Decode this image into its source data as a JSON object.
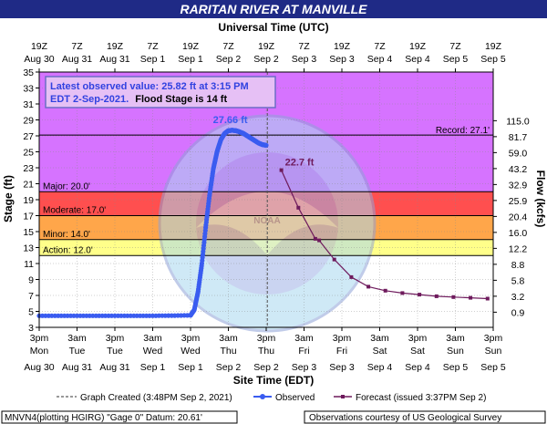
{
  "chart_data": {
    "type": "line",
    "title": "RARITAN RIVER AT MANVILLE",
    "top_axis_title": "Universal Time (UTC)",
    "xlabel": "Site Time (EDT)",
    "ylabel": "Stage (ft)",
    "y2label": "Flow (kcfs)",
    "ylim": [
      3,
      35
    ],
    "y_ticks": [
      3,
      5,
      7,
      9,
      11,
      13,
      15,
      17,
      19,
      21,
      23,
      25,
      27,
      29,
      31,
      33,
      35
    ],
    "flow_ticks": [
      {
        "stage": 4.9,
        "label": "0.9"
      },
      {
        "stage": 6.9,
        "label": "3.2"
      },
      {
        "stage": 8.9,
        "label": "5.8"
      },
      {
        "stage": 10.9,
        "label": "8.8"
      },
      {
        "stage": 12.9,
        "label": "12.2"
      },
      {
        "stage": 14.9,
        "label": "16.0"
      },
      {
        "stage": 16.9,
        "label": "20.4"
      },
      {
        "stage": 18.9,
        "label": "25.9"
      },
      {
        "stage": 20.9,
        "label": "32.9"
      },
      {
        "stage": 22.9,
        "label": "43.2"
      },
      {
        "stage": 24.9,
        "label": "59.0"
      },
      {
        "stage": 26.9,
        "label": "81.7"
      },
      {
        "stage": 28.9,
        "label": "115.0"
      }
    ],
    "x_ticks": [
      {
        "top1": "19Z",
        "top2": "Aug 30",
        "bot1": "3pm",
        "bot2": "Mon",
        "bot3": "Aug 30"
      },
      {
        "top1": "7Z",
        "top2": "Aug 31",
        "bot1": "3am",
        "bot2": "Tue",
        "bot3": "Aug 31"
      },
      {
        "top1": "19Z",
        "top2": "Aug 31",
        "bot1": "3pm",
        "bot2": "Tue",
        "bot3": "Aug 31"
      },
      {
        "top1": "7Z",
        "top2": "Sep 1",
        "bot1": "3am",
        "bot2": "Wed",
        "bot3": "Sep 1"
      },
      {
        "top1": "19Z",
        "top2": "Sep 1",
        "bot1": "3pm",
        "bot2": "Wed",
        "bot3": "Sep 1"
      },
      {
        "top1": "7Z",
        "top2": "Sep 2",
        "bot1": "3am",
        "bot2": "Thu",
        "bot3": "Sep 2"
      },
      {
        "top1": "19Z",
        "top2": "Sep 2",
        "bot1": "3pm",
        "bot2": "Thu",
        "bot3": "Sep 2"
      },
      {
        "top1": "7Z",
        "top2": "Sep 3",
        "bot1": "3am",
        "bot2": "Fri",
        "bot3": "Sep 3"
      },
      {
        "top1": "19Z",
        "top2": "Sep 3",
        "bot1": "3pm",
        "bot2": "Fri",
        "bot3": "Sep 3"
      },
      {
        "top1": "7Z",
        "top2": "Sep 4",
        "bot1": "3am",
        "bot2": "Sat",
        "bot3": "Sep 4"
      },
      {
        "top1": "19Z",
        "top2": "Sep 4",
        "bot1": "3pm",
        "bot2": "Sat",
        "bot3": "Sep 4"
      },
      {
        "top1": "7Z",
        "top2": "Sep 5",
        "bot1": "3am",
        "bot2": "Sun",
        "bot3": "Sep 5"
      },
      {
        "top1": "19Z",
        "top2": "Sep 5",
        "bot1": "3pm",
        "bot2": "Sun",
        "bot3": "Sep 5"
      }
    ],
    "stage_bands": [
      {
        "name": "Action",
        "label": "Action: 12.0'",
        "from": 12,
        "to": 14,
        "color": "#ffff8a"
      },
      {
        "name": "Minor",
        "label": "Minor: 14.0'",
        "from": 14,
        "to": 17,
        "color": "#ffa64a"
      },
      {
        "name": "Moderate",
        "label": "Moderate: 17.0'",
        "from": 17,
        "to": 20,
        "color": "#ff4f4f"
      },
      {
        "name": "Major",
        "label": "Major: 20.0'",
        "from": 20,
        "to": 35,
        "color": "#d673ff"
      }
    ],
    "record": {
      "label": "Record: 27.1'",
      "value": 27.1
    },
    "graph_created_x": 6.03,
    "observed": {
      "name": "Observed",
      "color": "#3a5cf0",
      "x": [
        0,
        1,
        2,
        3,
        4,
        4.1,
        4.2,
        4.3,
        4.4,
        4.5,
        4.6,
        4.7,
        4.8,
        4.9,
        5.0,
        5.1,
        5.2,
        5.3,
        5.4,
        5.5,
        5.6,
        5.7,
        5.8,
        5.9,
        6.0
      ],
      "y": [
        4.45,
        4.45,
        4.45,
        4.45,
        4.5,
        5.2,
        7.5,
        11.0,
        15.5,
        19.5,
        22.8,
        25.0,
        26.5,
        27.3,
        27.66,
        27.7,
        27.66,
        27.5,
        27.3,
        27.0,
        26.7,
        26.4,
        26.1,
        25.9,
        25.82
      ]
    },
    "forecast": {
      "name": "Forecast",
      "color": "#6e1a5c",
      "x": [
        6.4,
        6.85,
        7.3,
        7.4,
        7.8,
        8.25,
        8.7,
        9.15,
        9.6,
        10.05,
        10.5,
        10.95,
        11.4,
        11.85
      ],
      "y": [
        22.7,
        18.0,
        14.1,
        13.9,
        11.5,
        9.3,
        8.1,
        7.6,
        7.3,
        7.1,
        6.9,
        6.8,
        6.7,
        6.6
      ]
    },
    "peak_label": "27.66 ft",
    "forecast_peak_label": "22.7 ft",
    "info_box": {
      "line1": "Latest observed value: 25.82 ft at 3:15 PM",
      "line2a": "EDT 2-Sep-2021.",
      "line2b": "Flood Stage is 14 ft"
    },
    "legend": {
      "graph_created": "Graph Created (3:48PM Sep 2, 2021)",
      "observed": "Observed",
      "forecast": "Forecast (issued 3:37PM Sep 2)"
    },
    "footer_left": "MNVN4(plotting HGIRG) \"Gage 0\" Datum: 20.61'",
    "footer_right": "Observations courtesy of US Geological Survey"
  },
  "colors": {
    "title_bg": "#1f2a86",
    "plot_bg": "#ffffff",
    "frame": "#000000"
  }
}
